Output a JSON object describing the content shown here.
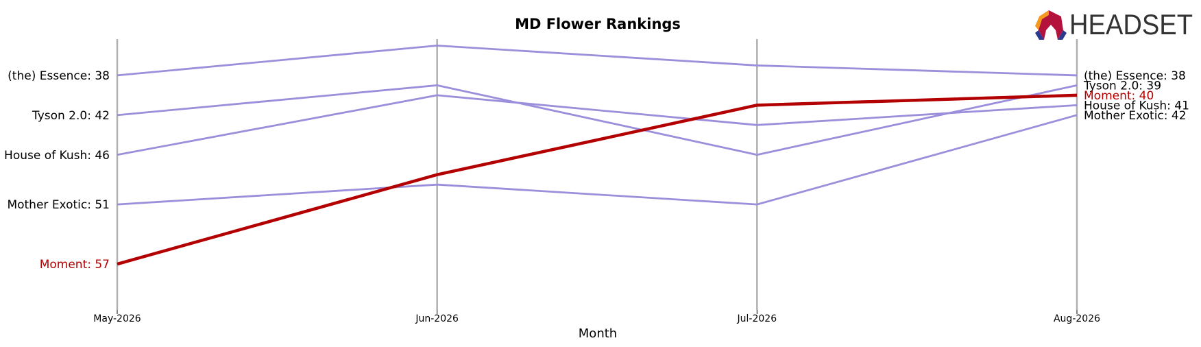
{
  "chart_data": {
    "type": "bump",
    "title": "MD Flower Rankings",
    "xlabel": "Month",
    "logo_text": "HEADSET",
    "categories": [
      "May-2026",
      "Jun-2026",
      "Jul-2026",
      "Aug-2026"
    ],
    "ylim": [
      34,
      58
    ],
    "invert_y": true,
    "highlight": "Moment",
    "series": [
      {
        "name": "(the) Essence",
        "color": "#9b8fdb",
        "values": [
          38,
          35,
          37,
          38
        ],
        "value_labels": [
          "(the) Essence: 38",
          null,
          null,
          "(the) Essence: 38"
        ]
      },
      {
        "name": "Tyson 2.0",
        "color": "#9b8fdb",
        "values": [
          42,
          39,
          46,
          39
        ],
        "value_labels": [
          "Tyson 2.0: 42",
          null,
          null,
          "Tyson 2.0: 39"
        ]
      },
      {
        "name": "House of Kush",
        "color": "#9b8fdb",
        "values": [
          46,
          40,
          43,
          41
        ],
        "value_labels": [
          "House of Kush: 46",
          null,
          null,
          "House of Kush: 41"
        ]
      },
      {
        "name": "Mother Exotic",
        "color": "#9b8fdb",
        "values": [
          51,
          49,
          51,
          42
        ],
        "value_labels": [
          "Mother Exotic: 51",
          null,
          null,
          "Mother Exotic: 42"
        ]
      },
      {
        "name": "Moment",
        "color": "#b30000",
        "values": [
          57,
          48,
          41,
          40
        ],
        "value_labels": [
          "Moment: 57",
          null,
          null,
          "Moment: 40"
        ]
      }
    ]
  }
}
